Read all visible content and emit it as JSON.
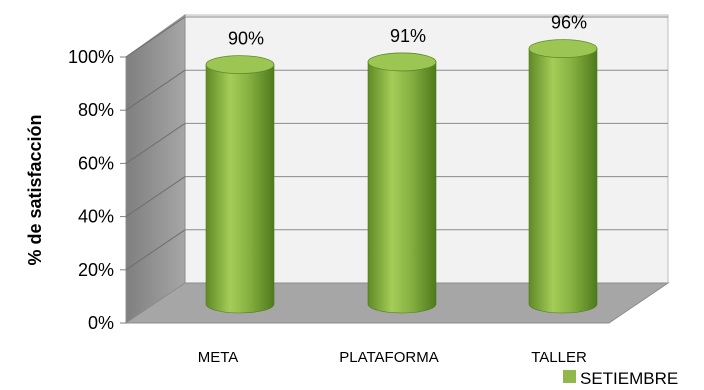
{
  "chart_data": {
    "type": "bar",
    "style": "3d-cylinder",
    "categories": [
      "META",
      "PLATAFORMA",
      "TALLER"
    ],
    "series": [
      {
        "name": "SETIEMBRE",
        "values": [
          90,
          91,
          96
        ],
        "color": "#92b84a"
      }
    ],
    "data_labels": [
      "90%",
      "91%",
      "96%"
    ],
    "ylabel": "% de satisfacción",
    "ylim": [
      0,
      100
    ],
    "yticks": [
      0,
      20,
      40,
      60,
      80,
      100
    ],
    "ytick_labels": [
      "0%",
      "20%",
      "40%",
      "60%",
      "80%",
      "100%"
    ],
    "grid": true,
    "legend_position": "bottom-right"
  }
}
